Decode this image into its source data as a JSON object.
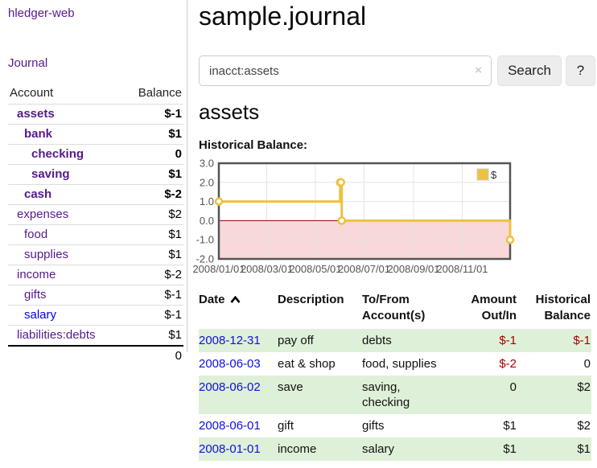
{
  "app": {
    "title": "hledger-web",
    "journal_link": "Journal"
  },
  "sidebar": {
    "header": {
      "account": "Account",
      "balance": "Balance"
    },
    "accounts": [
      {
        "name": "assets",
        "balance": "$-1"
      },
      {
        "name": "bank",
        "balance": "$1"
      },
      {
        "name": "checking",
        "balance": "0"
      },
      {
        "name": "saving",
        "balance": "$1"
      },
      {
        "name": "cash",
        "balance": "$-2"
      },
      {
        "name": "expenses",
        "balance": "$2"
      },
      {
        "name": "food",
        "balance": "$1"
      },
      {
        "name": "supplies",
        "balance": "$1"
      },
      {
        "name": "income",
        "balance": "$-2"
      },
      {
        "name": "gifts",
        "balance": "$-1"
      },
      {
        "name": "salary",
        "balance": "$-1"
      },
      {
        "name": "liabilities:debts",
        "balance": "$1"
      }
    ],
    "total": "0"
  },
  "main": {
    "title": "sample.journal",
    "search": {
      "value": "inacct:assets",
      "clear_icon": "×",
      "search_button": "Search",
      "help_button": "?"
    },
    "account_heading": "assets",
    "chart_title": "Historical Balance:"
  },
  "chart_data": {
    "type": "line",
    "title": "Historical Balance",
    "series": [
      {
        "name": "$",
        "step": true,
        "points": [
          [
            "2008-01-01",
            1
          ],
          [
            "2008-06-01",
            2
          ],
          [
            "2008-06-02",
            2
          ],
          [
            "2008-06-03",
            0
          ],
          [
            "2008-12-31",
            -1
          ]
        ]
      }
    ],
    "x_range": [
      "2008-01-01",
      "2008-12-31"
    ],
    "x_ticks": [
      "2008/01/01",
      "2008/03/01",
      "2008/05/01",
      "2008/07/01",
      "2008/09/01",
      "2008/11/01"
    ],
    "y_ticks": [
      "3.0",
      "2.0",
      "1.0",
      "0.0",
      "-1.0",
      "-2.0"
    ],
    "ylim": [
      -2,
      3
    ],
    "grid": true,
    "legend_position": "top-right",
    "line_color": "#edc240",
    "negative_fill": "#f8d8d8",
    "zero_line_color": "#8b0000",
    "border_color": "#545454",
    "tick_color": "#545454"
  },
  "register": {
    "headers": {
      "date": "Date",
      "description": "Description",
      "accounts": "To/From Account(s)",
      "amount": "Amount Out/In",
      "historical": "Historical Balance"
    },
    "rows": [
      {
        "date": "2008-12-31",
        "description": "pay off",
        "accounts": "debts",
        "amount": "$-1",
        "balance": "$-1"
      },
      {
        "date": "2008-06-03",
        "description": "eat & shop",
        "accounts": "food, supplies",
        "amount": "$-2",
        "balance": "0"
      },
      {
        "date": "2008-06-02",
        "description": "save",
        "accounts": "saving, checking",
        "amount": "0",
        "balance": "$2"
      },
      {
        "date": "2008-06-01",
        "description": "gift",
        "accounts": "gifts",
        "amount": "$1",
        "balance": "$2"
      },
      {
        "date": "2008-01-01",
        "description": "income",
        "accounts": "salary",
        "amount": "$1",
        "balance": "$1"
      }
    ]
  }
}
